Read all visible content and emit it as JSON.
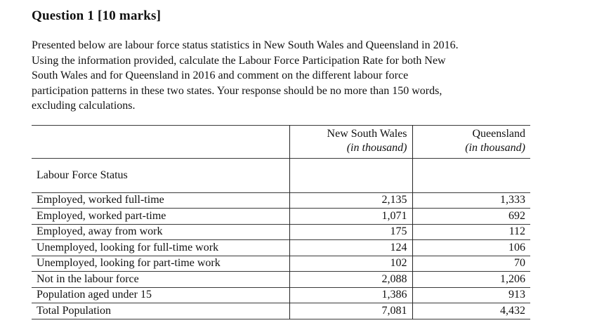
{
  "page": {
    "title": "Question 1 [10 marks]",
    "paragraph_lines": [
      "Presented below are labour force status statistics in New South Wales and Queensland in 2016.",
      "Using the information provided, calculate the Labour Force Participation Rate for both New",
      "South Wales and for Queensland in 2016 and comment on the different labour force",
      "participation patterns in these two states. Your response should be no more than 150 words,",
      "excluding calculations."
    ]
  },
  "table": {
    "row_header": "Labour Force Status",
    "col_headers": [
      {
        "name": "New South Wales",
        "unit": "(in thousand)"
      },
      {
        "name": "Queensland",
        "unit": "(in thousand)"
      }
    ],
    "rows": [
      {
        "label": "Employed, worked full-time",
        "nsw": "2,135",
        "qld": "1,333"
      },
      {
        "label": "Employed, worked part-time",
        "nsw": "1,071",
        "qld": "692"
      },
      {
        "label": "Employed, away from work",
        "nsw": "175",
        "qld": "112"
      },
      {
        "label": "Unemployed, looking for full-time work",
        "nsw": "124",
        "qld": "106"
      },
      {
        "label": "Unemployed, looking for part-time work",
        "nsw": "102",
        "qld": "70"
      },
      {
        "label": "Not in the labour force",
        "nsw": "2,088",
        "qld": "1,206"
      },
      {
        "label": "Population aged under 15",
        "nsw": "1,386",
        "qld": "913"
      },
      {
        "label": "Total Population",
        "nsw": "7,081",
        "qld": "4,432"
      }
    ]
  }
}
